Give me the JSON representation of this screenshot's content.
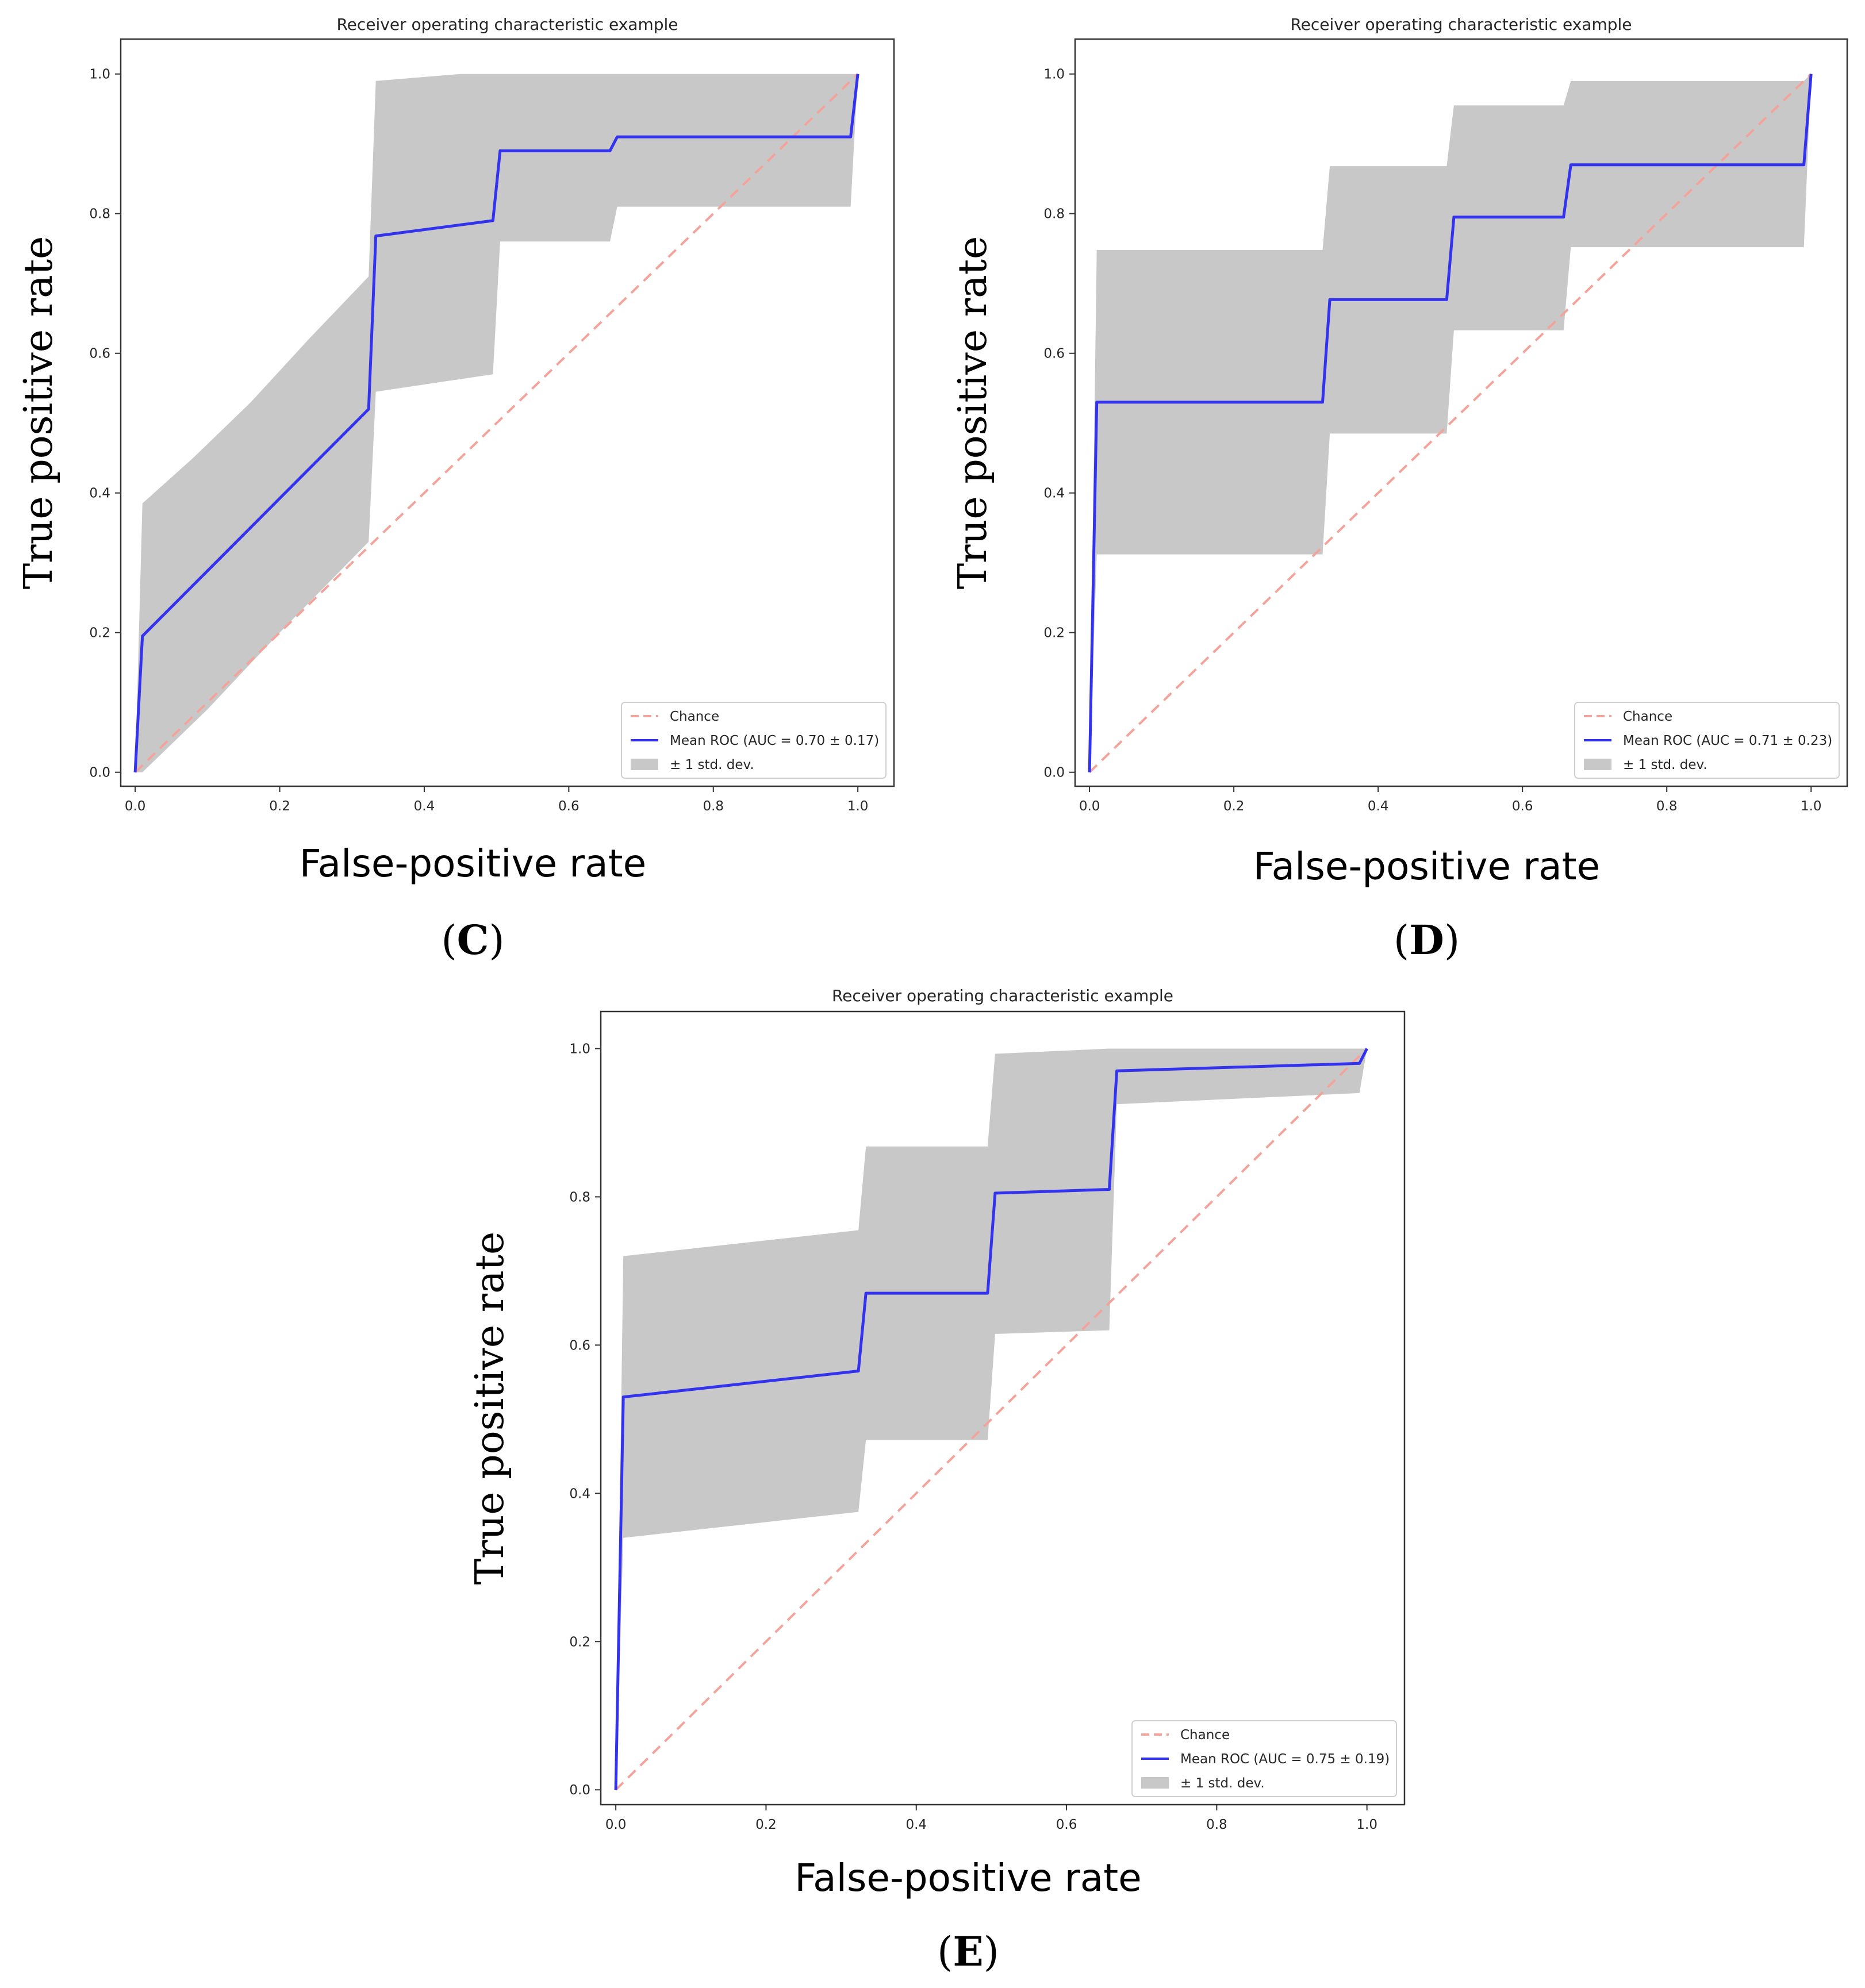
{
  "colors": {
    "mean": "#3333ee",
    "chance": "#f4a39a",
    "band": "#c8c8c8",
    "axis": "#333333"
  },
  "panels": [
    {
      "id": "c",
      "letter": "C",
      "label_open": "(",
      "label_close": ")"
    },
    {
      "id": "d",
      "letter": "D",
      "label_open": "(",
      "label_close": ")"
    },
    {
      "id": "e",
      "letter": "E",
      "label_open": "(",
      "label_close": ")"
    }
  ],
  "chart_data": [
    {
      "type": "line",
      "panel": "C",
      "title": "Receiver operating characteristic example",
      "xlabel": "False-positive rate",
      "ylabel": "True positive rate",
      "xlim": [
        -0.02,
        1.05
      ],
      "ylim": [
        -0.02,
        1.05
      ],
      "xticks": [
        "0.0",
        "0.2",
        "0.4",
        "0.6",
        "0.8",
        "1.0"
      ],
      "yticks": [
        "0.0",
        "0.2",
        "0.4",
        "0.6",
        "0.8",
        "1.0"
      ],
      "legend_position": "lower-right",
      "legend": [
        {
          "kind": "chance",
          "label": "Chance"
        },
        {
          "kind": "mean",
          "label": "Mean ROC (AUC = 0.70 ± 0.17)"
        },
        {
          "kind": "band",
          "label": "± 1 std. dev."
        }
      ],
      "chance": {
        "x": [
          0,
          1
        ],
        "y": [
          0,
          1
        ]
      },
      "mean": {
        "x": [
          0,
          0.01,
          0.323,
          0.333,
          0.495,
          0.505,
          0.657,
          0.667,
          0.99,
          1.0
        ],
        "y": [
          0,
          0.195,
          0.52,
          0.768,
          0.79,
          0.89,
          0.89,
          0.91,
          0.91,
          1.0
        ]
      },
      "band_upper": {
        "x": [
          0,
          0.01,
          0.08,
          0.16,
          0.24,
          0.323,
          0.333,
          0.45,
          0.99,
          1.0
        ],
        "y": [
          0,
          0.385,
          0.45,
          0.53,
          0.62,
          0.71,
          0.99,
          1.0,
          1.0,
          1.0
        ]
      },
      "band_lower": {
        "x": [
          1.0,
          0.99,
          0.667,
          0.657,
          0.505,
          0.495,
          0.333,
          0.323,
          0.2,
          0.1,
          0.01,
          0
        ],
        "y": [
          1.0,
          0.81,
          0.81,
          0.76,
          0.76,
          0.57,
          0.545,
          0.33,
          0.2,
          0.09,
          0.0,
          0
        ]
      }
    },
    {
      "type": "line",
      "panel": "D",
      "title": "Receiver operating characteristic example",
      "xlabel": "False-positive rate",
      "ylabel": "True positive rate",
      "xlim": [
        -0.02,
        1.05
      ],
      "ylim": [
        -0.02,
        1.05
      ],
      "xticks": [
        "0.0",
        "0.2",
        "0.4",
        "0.6",
        "0.8",
        "1.0"
      ],
      "yticks": [
        "0.0",
        "0.2",
        "0.4",
        "0.6",
        "0.8",
        "1.0"
      ],
      "legend_position": "lower-right",
      "legend": [
        {
          "kind": "chance",
          "label": "Chance"
        },
        {
          "kind": "mean",
          "label": "Mean ROC (AUC = 0.71 ± 0.23)"
        },
        {
          "kind": "band",
          "label": "± 1 std. dev."
        }
      ],
      "chance": {
        "x": [
          0,
          1
        ],
        "y": [
          0,
          1
        ]
      },
      "mean": {
        "x": [
          0,
          0.01,
          0.323,
          0.333,
          0.495,
          0.505,
          0.657,
          0.667,
          0.99,
          1.0
        ],
        "y": [
          0,
          0.53,
          0.53,
          0.677,
          0.677,
          0.795,
          0.795,
          0.87,
          0.87,
          1.0
        ]
      },
      "band_upper": {
        "x": [
          0,
          0.01,
          0.323,
          0.333,
          0.495,
          0.505,
          0.657,
          0.667,
          0.99,
          1.0
        ],
        "y": [
          0,
          0.748,
          0.748,
          0.868,
          0.868,
          0.955,
          0.955,
          0.99,
          0.99,
          1.0
        ]
      },
      "band_lower": {
        "x": [
          1.0,
          0.99,
          0.667,
          0.657,
          0.505,
          0.495,
          0.333,
          0.323,
          0.01,
          0
        ],
        "y": [
          1.0,
          0.752,
          0.752,
          0.633,
          0.633,
          0.485,
          0.485,
          0.312,
          0.312,
          0
        ]
      }
    },
    {
      "type": "line",
      "panel": "E",
      "title": "Receiver operating characteristic example",
      "xlabel": "False-positive rate",
      "ylabel": "True positive rate",
      "xlim": [
        -0.02,
        1.05
      ],
      "ylim": [
        -0.02,
        1.05
      ],
      "xticks": [
        "0.0",
        "0.2",
        "0.4",
        "0.6",
        "0.8",
        "1.0"
      ],
      "yticks": [
        "0.0",
        "0.2",
        "0.4",
        "0.6",
        "0.8",
        "1.0"
      ],
      "legend_position": "lower-right",
      "legend": [
        {
          "kind": "chance",
          "label": "Chance"
        },
        {
          "kind": "mean",
          "label": "Mean ROC (AUC = 0.75 ± 0.19)"
        },
        {
          "kind": "band",
          "label": "± 1 std. dev."
        }
      ],
      "chance": {
        "x": [
          0,
          1
        ],
        "y": [
          0,
          1
        ]
      },
      "mean": {
        "x": [
          0,
          0.01,
          0.323,
          0.333,
          0.495,
          0.505,
          0.657,
          0.667,
          0.99,
          1.0
        ],
        "y": [
          0,
          0.53,
          0.565,
          0.67,
          0.67,
          0.805,
          0.81,
          0.97,
          0.98,
          1.0
        ]
      },
      "band_upper": {
        "x": [
          0,
          0.01,
          0.323,
          0.333,
          0.495,
          0.505,
          0.657,
          0.667,
          0.99,
          1.0
        ],
        "y": [
          0,
          0.72,
          0.755,
          0.868,
          0.868,
          0.993,
          1.0,
          1.0,
          1.0,
          1.0
        ]
      },
      "band_lower": {
        "x": [
          1.0,
          0.99,
          0.667,
          0.657,
          0.505,
          0.495,
          0.333,
          0.323,
          0.01,
          0
        ],
        "y": [
          1.0,
          0.94,
          0.925,
          0.62,
          0.615,
          0.472,
          0.472,
          0.375,
          0.34,
          0
        ]
      }
    }
  ]
}
